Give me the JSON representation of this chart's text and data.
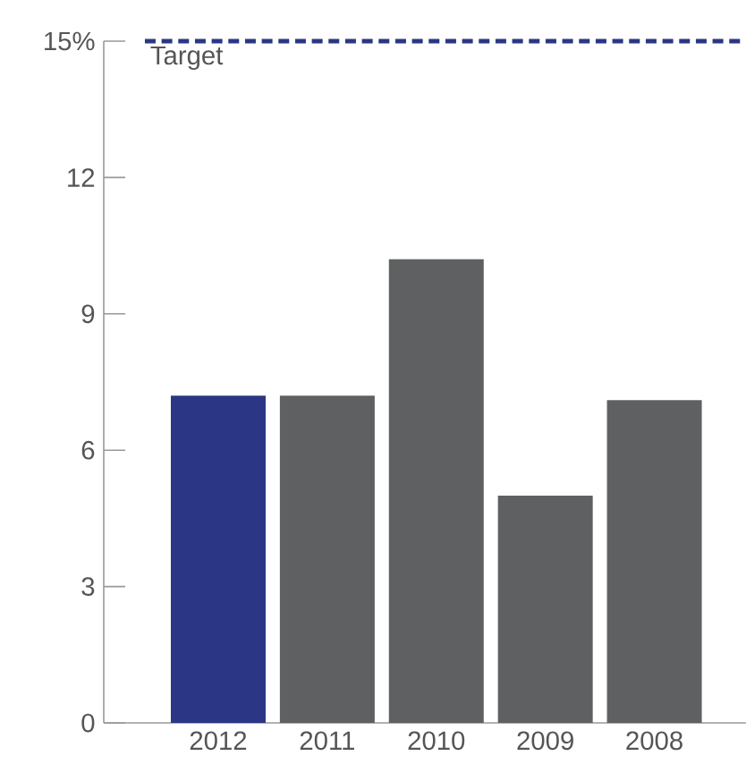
{
  "chart_data": {
    "type": "bar",
    "categories": [
      "2012",
      "2011",
      "2010",
      "2009",
      "2008"
    ],
    "values": [
      7.2,
      7.2,
      10.2,
      5.0,
      7.1
    ],
    "colors": [
      "#2b3784",
      "#5f6062",
      "#5f6062",
      "#5f6062",
      "#5f6062"
    ],
    "ylim": [
      0,
      15
    ],
    "yticks": [
      0,
      3,
      6,
      9,
      12,
      {
        "value": 15,
        "label": "15%"
      }
    ],
    "ref_lines": [
      {
        "axis": "y",
        "value": 15,
        "label": "Target",
        "color": "#2b3784",
        "line_style": "dashed"
      }
    ],
    "grid": false
  }
}
